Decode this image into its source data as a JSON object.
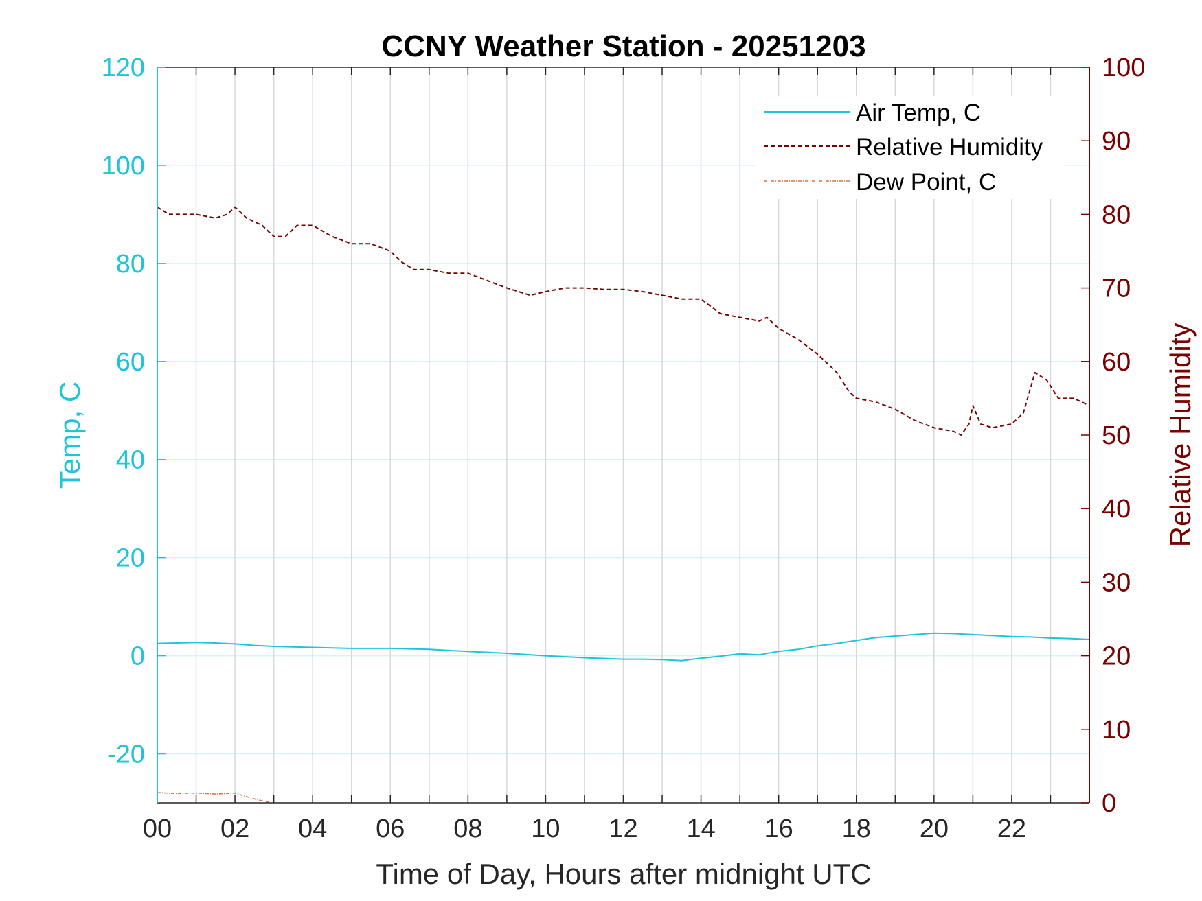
{
  "chart_data": {
    "type": "line",
    "title": "CCNY Weather Station - 20251203",
    "xlabel": "Time of Day, Hours after midnight UTC",
    "ylabel_left": "Temp, C",
    "ylabel_right": "Relative Humidity",
    "xlim": [
      0,
      24
    ],
    "ylim_left": [
      -30,
      120
    ],
    "ylim_right": [
      0,
      100
    ],
    "x_ticks": [
      0,
      2,
      4,
      6,
      8,
      10,
      12,
      14,
      16,
      18,
      20,
      22
    ],
    "x_tick_labels": [
      "00",
      "02",
      "04",
      "06",
      "08",
      "10",
      "12",
      "14",
      "16",
      "18",
      "20",
      "22"
    ],
    "y_left_ticks": [
      120,
      100,
      80,
      60,
      40,
      20,
      0,
      -20
    ],
    "y_left_tick_labels": [
      "120",
      "100",
      "80",
      "60",
      "40",
      "20",
      "0",
      "-20"
    ],
    "y_right_ticks": [
      100,
      90,
      80,
      70,
      60,
      50,
      40,
      30,
      20,
      10,
      0
    ],
    "y_right_tick_labels": [
      "100",
      "90",
      "80",
      "70",
      "60",
      "50",
      "40",
      "30",
      "20",
      "10",
      "0"
    ],
    "grid": true,
    "legend_position": "top-right",
    "colors": {
      "air_temp": "#1fc4d9",
      "humidity": "#7a0000",
      "dew_point": "#e07040",
      "left_axis": "#1fc4d9",
      "right_axis": "#7a0000",
      "vgrid": "#d4d9dd",
      "hgrid": "#d8f3f8"
    },
    "series": [
      {
        "name": "Air Temp, C",
        "axis": "left",
        "style": "solid",
        "x": [
          0,
          0.5,
          1,
          1.5,
          2,
          2.5,
          3,
          3.5,
          4,
          5,
          6,
          7,
          8,
          9,
          10,
          11,
          12,
          12.5,
          13,
          13.5,
          14,
          14.5,
          15,
          15.5,
          16,
          16.5,
          17,
          17.5,
          18,
          18.5,
          19,
          19.5,
          20,
          20.5,
          21,
          21.5,
          22,
          22.5,
          23,
          23.5,
          24
        ],
        "y": [
          2.5,
          2.6,
          2.7,
          2.6,
          2.4,
          2.1,
          1.9,
          1.8,
          1.7,
          1.5,
          1.5,
          1.3,
          0.9,
          0.5,
          0.0,
          -0.4,
          -0.7,
          -0.7,
          -0.8,
          -1.0,
          -0.5,
          -0.1,
          0.4,
          0.2,
          0.9,
          1.3,
          2.0,
          2.5,
          3.1,
          3.7,
          4.0,
          4.3,
          4.6,
          4.5,
          4.3,
          4.1,
          3.9,
          3.8,
          3.6,
          3.5,
          3.3
        ]
      },
      {
        "name": "Relative Humidity",
        "axis": "right",
        "style": "dashed",
        "x": [
          0,
          0.3,
          0.6,
          1,
          1.5,
          1.8,
          2,
          2.3,
          2.7,
          3,
          3.3,
          3.6,
          4,
          4.5,
          5,
          5.5,
          6,
          6.3,
          6.6,
          7,
          7.5,
          8,
          8.5,
          9,
          9.6,
          10,
          10.5,
          11,
          11.5,
          12,
          12.5,
          13,
          13.5,
          14,
          14.5,
          15,
          15.5,
          15.7,
          16,
          16.5,
          17,
          17.5,
          17.8,
          18,
          18.5,
          19,
          19.5,
          20,
          20.5,
          20.7,
          20.9,
          21,
          21.2,
          21.5,
          22,
          22.3,
          22.6,
          22.9,
          23.2,
          23.6,
          24
        ],
        "y": [
          81,
          80,
          80,
          80,
          79.5,
          80,
          81,
          79.5,
          78.5,
          77,
          77,
          78.5,
          78.5,
          77,
          76,
          76,
          75,
          73.5,
          72.5,
          72.5,
          72,
          72,
          71,
          70,
          69,
          69.5,
          70,
          70,
          69.8,
          69.8,
          69.5,
          69,
          68.5,
          68.5,
          66.5,
          66,
          65.5,
          66,
          64.5,
          63,
          61,
          58.5,
          56,
          55,
          54.5,
          53.5,
          52,
          51,
          50.5,
          50,
          51.5,
          54,
          51.5,
          51,
          51.5,
          53,
          58.5,
          57.5,
          55,
          55,
          54
        ]
      },
      {
        "name": "Dew Point, C",
        "axis": "left",
        "style": "dashdot",
        "x": [
          0,
          0.5,
          1,
          1.5,
          2,
          2.2,
          2.5,
          2.8,
          3
        ],
        "y": [
          -27.9,
          -28.1,
          -28.0,
          -28.2,
          -28.0,
          -28.5,
          -29.2,
          -29.8,
          -30.0
        ]
      }
    ]
  }
}
